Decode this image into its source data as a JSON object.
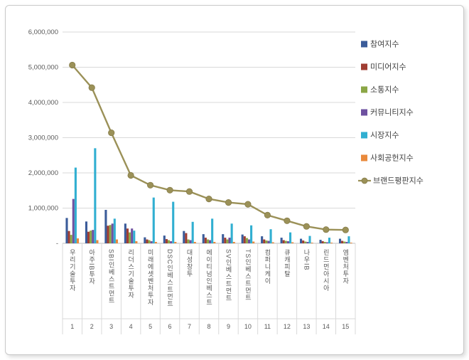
{
  "chart_data": {
    "type": "bar",
    "subtype": "clustered-bar-with-line-overlay",
    "title": "",
    "legend_position": "right",
    "grid": true,
    "categories": [
      "우리기술투자",
      "아주IB투자",
      "SBI인베스트먼트",
      "리더스기술투자",
      "미래에셋벤처투자",
      "DSC인베스트먼트",
      "대성창투",
      "에이티넘인베스트",
      "SV인베스트먼트",
      "TS인베스트먼트",
      "컴퍼니케이",
      "큐캐피탈",
      "나우IB",
      "린드먼아시아",
      "엠벤처투자"
    ],
    "category_numbers": [
      "1",
      "2",
      "3",
      "4",
      "5",
      "6",
      "7",
      "8",
      "9",
      "10",
      "11",
      "12",
      "13",
      "14",
      "15"
    ],
    "y_axis": {
      "min": 0,
      "max": 6000000,
      "tick_interval": 1000000,
      "tick_labels": [
        "-",
        "1,000,000",
        "2,000,000",
        "3,000,000",
        "4,000,000",
        "5,000,000",
        "6,000,000"
      ]
    },
    "series": [
      {
        "name": "참여지수",
        "color": "#3B5C9A",
        "values": [
          720000,
          620000,
          950000,
          560000,
          170000,
          220000,
          350000,
          260000,
          260000,
          250000,
          200000,
          160000,
          130000,
          100000,
          130000
        ]
      },
      {
        "name": "미디어지수",
        "color": "#A03E33",
        "values": [
          350000,
          330000,
          500000,
          420000,
          110000,
          120000,
          290000,
          160000,
          160000,
          200000,
          110000,
          90000,
          80000,
          60000,
          70000
        ]
      },
      {
        "name": "소통지수",
        "color": "#8BA646",
        "values": [
          240000,
          360000,
          520000,
          310000,
          90000,
          90000,
          110000,
          110000,
          110000,
          150000,
          80000,
          70000,
          50000,
          40000,
          50000
        ]
      },
      {
        "name": "커뮤니티지수",
        "color": "#6E51A0",
        "values": [
          1260000,
          380000,
          560000,
          420000,
          60000,
          60000,
          90000,
          90000,
          160000,
          110000,
          70000,
          60000,
          40000,
          30000,
          40000
        ]
      },
      {
        "name": "시장지수",
        "color": "#31AFD1",
        "values": [
          2150000,
          2700000,
          700000,
          360000,
          1300000,
          1180000,
          610000,
          700000,
          560000,
          510000,
          400000,
          310000,
          210000,
          160000,
          200000
        ]
      },
      {
        "name": "사회공헌지수",
        "color": "#E98A3C",
        "values": [
          140000,
          90000,
          110000,
          60000,
          40000,
          40000,
          40000,
          40000,
          40000,
          50000,
          30000,
          30000,
          20000,
          20000,
          20000
        ]
      }
    ],
    "line_series": {
      "name": "브랜드평판지수",
      "color": "#9B9158",
      "values": [
        5060000,
        4420000,
        3140000,
        1930000,
        1650000,
        1510000,
        1470000,
        1260000,
        1160000,
        1110000,
        800000,
        640000,
        480000,
        390000,
        380000
      ]
    },
    "colors": {
      "gridline": "#d9d9d9",
      "axis": "#bfbfbf",
      "tick_text": "#595959",
      "legend_text": "#404040"
    }
  }
}
